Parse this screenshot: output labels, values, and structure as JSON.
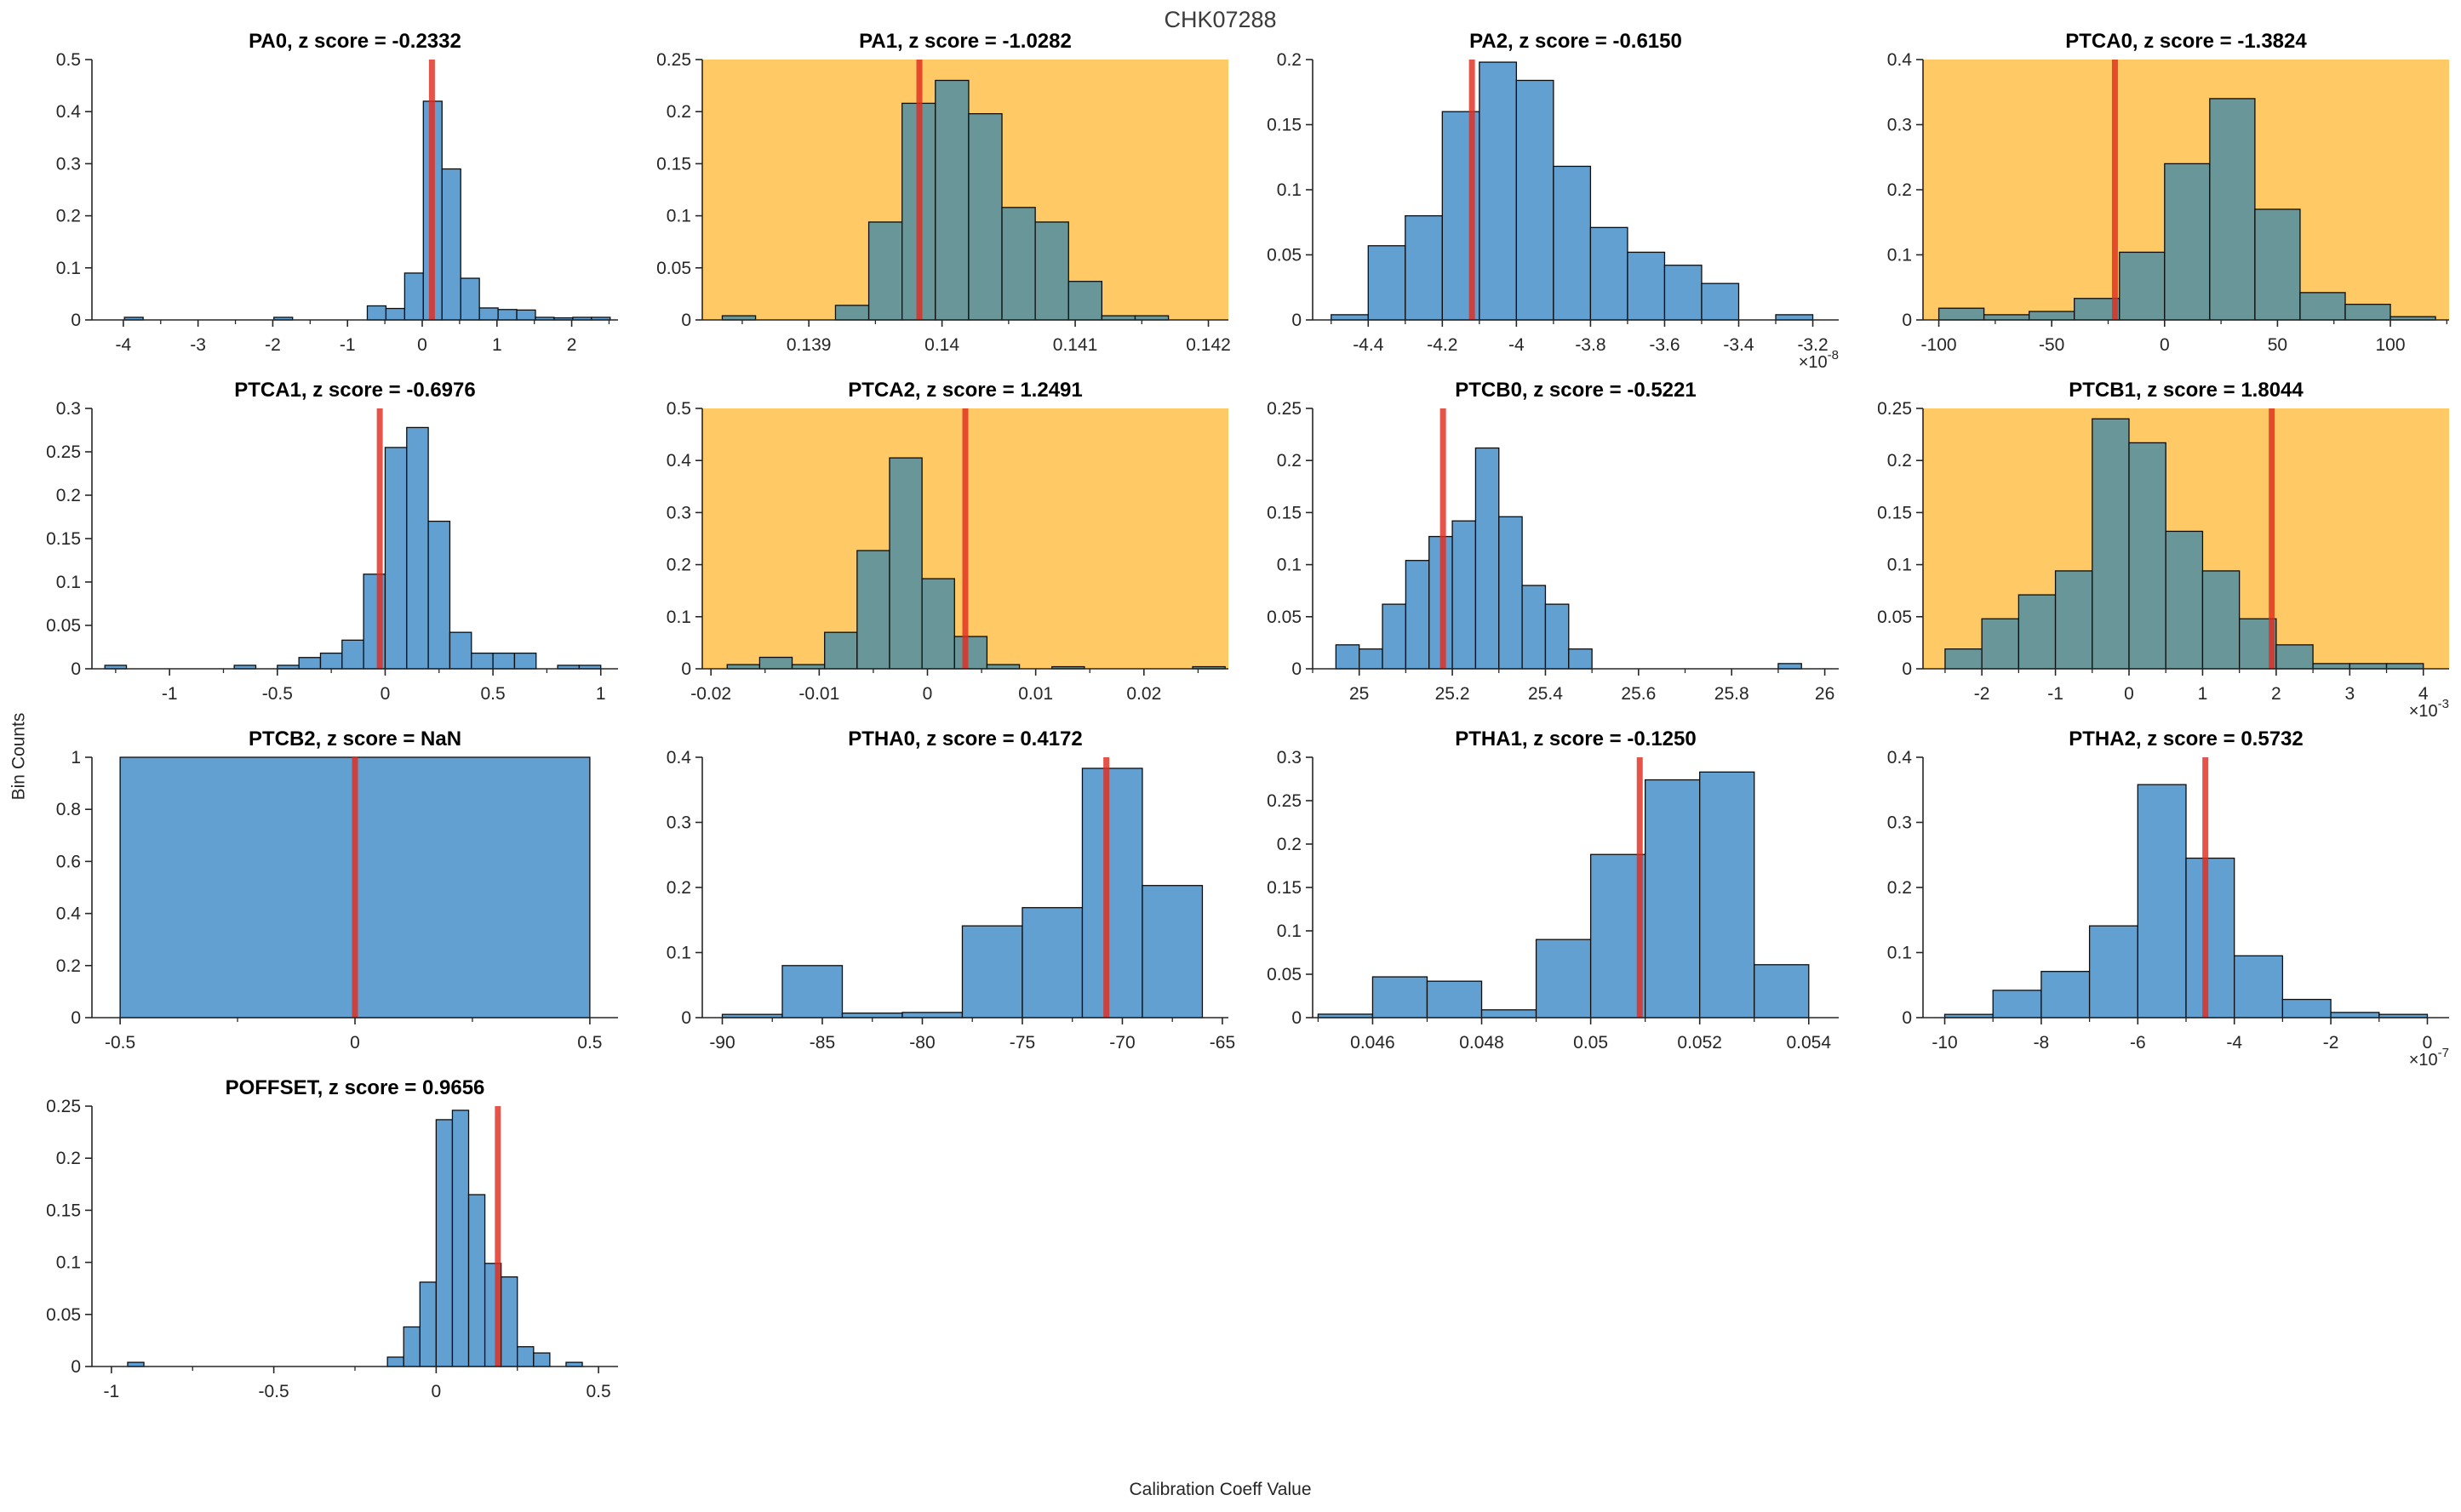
{
  "figure": {
    "title": "CHK07288",
    "xlabel": "Calibration Coeff Value",
    "ylabel": "Bin Counts"
  },
  "colors": {
    "bar_fill": "#61a0d1",
    "bar_fill_on_highlight": "#699699",
    "highlight_bg": "#ffca66",
    "red_line": "#e02d20",
    "bar_edge": "#0d0d0d",
    "axis_color": "#262626",
    "subplot_title_color": "#000000",
    "figure_title_color": "#3c3c3c"
  },
  "chart_data": [
    {
      "type": "bar",
      "name": "PA0",
      "title": "PA0, z score = -0.2332",
      "highlight": false,
      "xlim": [
        -4.42,
        2.62
      ],
      "ylim": [
        0,
        0.5
      ],
      "xtick_vals": [
        -4,
        -3,
        -2,
        -1,
        0,
        1,
        2
      ],
      "xtick_labels": [
        "-4",
        "-3",
        "-2",
        "-1",
        "0",
        "1",
        "2"
      ],
      "ytick_vals": [
        0,
        0.1,
        0.2,
        0.3,
        0.4,
        0.5
      ],
      "ytick_labels": [
        "0",
        "0.1",
        "0.2",
        "0.3",
        "0.4",
        "0.5"
      ],
      "x_exponent": "",
      "bins": [
        [
          -3.985,
          -3.735,
          0.005
        ],
        [
          -1.985,
          -1.735,
          0.005
        ],
        [
          -0.735,
          -0.485,
          0.027
        ],
        [
          -0.485,
          -0.235,
          0.022
        ],
        [
          -0.235,
          0.015,
          0.09
        ],
        [
          0.015,
          0.265,
          0.42
        ],
        [
          0.265,
          0.515,
          0.29
        ],
        [
          0.515,
          0.765,
          0.08
        ],
        [
          0.765,
          1.015,
          0.023
        ],
        [
          1.015,
          1.265,
          0.02
        ],
        [
          1.265,
          1.515,
          0.019
        ],
        [
          1.515,
          1.765,
          0.005
        ],
        [
          1.765,
          2.015,
          0.004
        ],
        [
          2.015,
          2.265,
          0.005
        ],
        [
          2.265,
          2.515,
          0.005
        ]
      ],
      "red_line_x": 0.13
    },
    {
      "type": "bar",
      "name": "PA1",
      "title": "PA1, z score = -1.0282",
      "highlight": true,
      "xlim": [
        0.1382,
        0.14215
      ],
      "ylim": [
        0,
        0.25
      ],
      "xtick_vals": [
        0.139,
        0.14,
        0.141,
        0.142
      ],
      "xtick_labels": [
        "0.139",
        "0.14",
        "0.141",
        "0.142"
      ],
      "ytick_vals": [
        0,
        0.05,
        0.1,
        0.15,
        0.2,
        0.25
      ],
      "ytick_labels": [
        "0",
        "0.05",
        "0.1",
        "0.15",
        "0.2",
        "0.25"
      ],
      "x_exponent": "",
      "bins": [
        [
          0.13835,
          0.1386,
          0.004
        ],
        [
          0.1392,
          0.13945,
          0.014
        ],
        [
          0.13945,
          0.1397,
          0.094
        ],
        [
          0.1397,
          0.13995,
          0.208
        ],
        [
          0.13995,
          0.1402,
          0.23
        ],
        [
          0.1402,
          0.14045,
          0.198
        ],
        [
          0.14045,
          0.1407,
          0.108
        ],
        [
          0.1407,
          0.14095,
          0.094
        ],
        [
          0.14095,
          0.1412,
          0.037
        ],
        [
          0.1412,
          0.14145,
          0.004
        ],
        [
          0.14145,
          0.1417,
          0.004
        ]
      ],
      "red_line_x": 0.13983
    },
    {
      "type": "bar",
      "name": "PA2",
      "title": "PA2, z score = -0.6150",
      "highlight": false,
      "xlim": [
        -4.55,
        -3.13
      ],
      "ylim": [
        0,
        0.2
      ],
      "xtick_vals": [
        -4.4,
        -4.2,
        -4,
        -3.8,
        -3.6,
        -3.4,
        -3.2
      ],
      "xtick_labels": [
        "-4.4",
        "-4.2",
        "-4",
        "-3.8",
        "-3.6",
        "-3.4",
        "-3.2"
      ],
      "ytick_vals": [
        0,
        0.05,
        0.1,
        0.15,
        0.2
      ],
      "ytick_labels": [
        "0",
        "0.05",
        "0.1",
        "0.15",
        "0.2"
      ],
      "x_exponent": "-8",
      "bins": [
        [
          -4.5,
          -4.4,
          0.004
        ],
        [
          -4.4,
          -4.3,
          0.057
        ],
        [
          -4.3,
          -4.2,
          0.08
        ],
        [
          -4.2,
          -4.1,
          0.16
        ],
        [
          -4.1,
          -4.0,
          0.198
        ],
        [
          -4.0,
          -3.9,
          0.184
        ],
        [
          -3.9,
          -3.8,
          0.118
        ],
        [
          -3.8,
          -3.7,
          0.071
        ],
        [
          -3.7,
          -3.6,
          0.052
        ],
        [
          -3.6,
          -3.5,
          0.042
        ],
        [
          -3.5,
          -3.4,
          0.028
        ],
        [
          -3.3,
          -3.2,
          0.004
        ]
      ],
      "red_line_x": -4.12
    },
    {
      "type": "bar",
      "name": "PTCA0",
      "title": "PTCA0, z score = -1.3824",
      "highlight": true,
      "xlim": [
        -107,
        126
      ],
      "ylim": [
        0,
        0.4
      ],
      "xtick_vals": [
        -100,
        -50,
        0,
        50,
        100
      ],
      "xtick_labels": [
        "-100",
        "-50",
        "0",
        "50",
        "100"
      ],
      "ytick_vals": [
        0,
        0.1,
        0.2,
        0.3,
        0.4
      ],
      "ytick_labels": [
        "0",
        "0.1",
        "0.2",
        "0.3",
        "0.4"
      ],
      "x_exponent": "",
      "bins": [
        [
          -100,
          -80,
          0.018
        ],
        [
          -80,
          -60,
          0.008
        ],
        [
          -60,
          -40,
          0.013
        ],
        [
          -40,
          -20,
          0.033
        ],
        [
          -20,
          0,
          0.104
        ],
        [
          0,
          20,
          0.24
        ],
        [
          20,
          40,
          0.34
        ],
        [
          40,
          60,
          0.17
        ],
        [
          60,
          80,
          0.042
        ],
        [
          80,
          100,
          0.024
        ],
        [
          100,
          120,
          0.005
        ]
      ],
      "red_line_x": -22
    },
    {
      "type": "bar",
      "name": "PTCA1",
      "title": "PTCA1, z score = -0.6976",
      "highlight": false,
      "xlim": [
        -1.36,
        1.08
      ],
      "ylim": [
        0,
        0.3
      ],
      "xtick_vals": [
        -1,
        -0.5,
        0,
        0.5,
        1
      ],
      "xtick_labels": [
        "-1",
        "-0.5",
        "0",
        "0.5",
        "1"
      ],
      "ytick_vals": [
        0,
        0.05,
        0.1,
        0.15,
        0.2,
        0.25,
        0.3
      ],
      "ytick_labels": [
        "0",
        "0.05",
        "0.1",
        "0.15",
        "0.2",
        "0.25",
        "0.3"
      ],
      "x_exponent": "",
      "bins": [
        [
          -1.3,
          -1.2,
          0.004
        ],
        [
          -0.7,
          -0.6,
          0.004
        ],
        [
          -0.5,
          -0.4,
          0.004
        ],
        [
          -0.4,
          -0.3,
          0.013
        ],
        [
          -0.3,
          -0.2,
          0.018
        ],
        [
          -0.2,
          -0.1,
          0.033
        ],
        [
          -0.1,
          0,
          0.109
        ],
        [
          0,
          0.1,
          0.255
        ],
        [
          0.1,
          0.2,
          0.278
        ],
        [
          0.2,
          0.3,
          0.17
        ],
        [
          0.3,
          0.4,
          0.042
        ],
        [
          0.4,
          0.5,
          0.018
        ],
        [
          0.5,
          0.6,
          0.018
        ],
        [
          0.6,
          0.7,
          0.018
        ],
        [
          0.8,
          0.9,
          0.004
        ],
        [
          0.9,
          1.0,
          0.004
        ]
      ],
      "red_line_x": -0.025
    },
    {
      "type": "bar",
      "name": "PTCA2",
      "title": "PTCA2, z score = 1.2491",
      "highlight": true,
      "xlim": [
        -0.0208,
        0.0278
      ],
      "ylim": [
        0,
        0.5
      ],
      "xtick_vals": [
        -0.02,
        -0.01,
        0,
        0.01,
        0.02
      ],
      "xtick_labels": [
        "-0.02",
        "-0.01",
        "0",
        "0.01",
        "0.02"
      ],
      "ytick_vals": [
        0,
        0.1,
        0.2,
        0.3,
        0.4,
        0.5
      ],
      "ytick_labels": [
        "0",
        "0.1",
        "0.2",
        "0.3",
        "0.4",
        "0.5"
      ],
      "x_exponent": "",
      "bins": [
        [
          -0.0185,
          -0.0155,
          0.008
        ],
        [
          -0.0155,
          -0.0125,
          0.022
        ],
        [
          -0.0125,
          -0.0095,
          0.008
        ],
        [
          -0.0095,
          -0.0065,
          0.07
        ],
        [
          -0.0065,
          -0.0035,
          0.227
        ],
        [
          -0.0035,
          -0.0005,
          0.405
        ],
        [
          -0.0005,
          0.0025,
          0.173
        ],
        [
          0.0025,
          0.0055,
          0.062
        ],
        [
          0.0055,
          0.0085,
          0.008
        ],
        [
          0.0115,
          0.0145,
          0.004
        ],
        [
          0.0245,
          0.0275,
          0.004
        ]
      ],
      "red_line_x": 0.0035
    },
    {
      "type": "bar",
      "name": "PTCB0",
      "title": "PTCB0, z score = -0.5221",
      "highlight": false,
      "xlim": [
        24.9,
        26.03
      ],
      "ylim": [
        0,
        0.25
      ],
      "xtick_vals": [
        25,
        25.2,
        25.4,
        25.6,
        25.8,
        26
      ],
      "xtick_labels": [
        "25",
        "25.2",
        "25.4",
        "25.6",
        "25.8",
        "26"
      ],
      "ytick_vals": [
        0,
        0.05,
        0.1,
        0.15,
        0.2,
        0.25
      ],
      "ytick_labels": [
        "0",
        "0.05",
        "0.1",
        "0.15",
        "0.2",
        "0.25"
      ],
      "x_exponent": "",
      "bins": [
        [
          24.95,
          25.0,
          0.023
        ],
        [
          25.0,
          25.05,
          0.019
        ],
        [
          25.05,
          25.1,
          0.062
        ],
        [
          25.1,
          25.15,
          0.104
        ],
        [
          25.15,
          25.2,
          0.127
        ],
        [
          25.2,
          25.25,
          0.142
        ],
        [
          25.25,
          25.3,
          0.212
        ],
        [
          25.3,
          25.35,
          0.146
        ],
        [
          25.35,
          25.4,
          0.08
        ],
        [
          25.4,
          25.45,
          0.062
        ],
        [
          25.45,
          25.5,
          0.019
        ],
        [
          25.9,
          25.95,
          0.005
        ]
      ],
      "red_line_x": 25.18
    },
    {
      "type": "bar",
      "name": "PTCB1",
      "title": "PTCB1, z score = 1.8044",
      "highlight": true,
      "xlim": [
        -2.8,
        4.35
      ],
      "ylim": [
        0,
        0.25
      ],
      "xtick_vals": [
        -2,
        -1,
        0,
        1,
        2,
        3,
        4
      ],
      "xtick_labels": [
        "-2",
        "-1",
        "0",
        "1",
        "2",
        "3",
        "4"
      ],
      "ytick_vals": [
        0,
        0.05,
        0.1,
        0.15,
        0.2,
        0.25
      ],
      "ytick_labels": [
        "0",
        "0.05",
        "0.1",
        "0.15",
        "0.2",
        "0.25"
      ],
      "x_exponent": "-3",
      "bins": [
        [
          -2.5,
          -2,
          0.019
        ],
        [
          -2,
          -1.5,
          0.048
        ],
        [
          -1.5,
          -1,
          0.071
        ],
        [
          -1,
          -0.5,
          0.094
        ],
        [
          -0.5,
          0,
          0.24
        ],
        [
          0,
          0.5,
          0.217
        ],
        [
          0.5,
          1,
          0.132
        ],
        [
          1,
          1.5,
          0.094
        ],
        [
          1.5,
          2,
          0.048
        ],
        [
          2,
          2.5,
          0.023
        ],
        [
          2.5,
          3,
          0.005
        ],
        [
          3,
          3.5,
          0.005
        ],
        [
          3.5,
          4,
          0.005
        ]
      ],
      "red_line_x": 1.94
    },
    {
      "type": "bar",
      "name": "PTCB2",
      "title": "PTCB2, z score = NaN",
      "highlight": false,
      "xlim": [
        -0.56,
        0.56
      ],
      "ylim": [
        0,
        1
      ],
      "xtick_vals": [
        -0.5,
        0,
        0.5
      ],
      "xtick_labels": [
        "-0.5",
        "0",
        "0.5"
      ],
      "ytick_vals": [
        0,
        0.2,
        0.4,
        0.6,
        0.8,
        1
      ],
      "ytick_labels": [
        "0",
        "0.2",
        "0.4",
        "0.6",
        "0.8",
        "1"
      ],
      "x_exponent": "",
      "bins": [
        [
          -0.5,
          0.5,
          1.0
        ]
      ],
      "red_line_x": 0
    },
    {
      "type": "bar",
      "name": "PTHA0",
      "title": "PTHA0, z score = 0.4172",
      "highlight": false,
      "xlim": [
        -91,
        -64.7
      ],
      "ylim": [
        0,
        0.4
      ],
      "xtick_vals": [
        -90,
        -85,
        -80,
        -75,
        -70,
        -65
      ],
      "xtick_labels": [
        "-90",
        "-85",
        "-80",
        "-75",
        "-70",
        "-65"
      ],
      "ytick_vals": [
        0,
        0.1,
        0.2,
        0.3,
        0.4
      ],
      "ytick_labels": [
        "0",
        "0.1",
        "0.2",
        "0.3",
        "0.4"
      ],
      "x_exponent": "",
      "bins": [
        [
          -90,
          -87,
          0.005
        ],
        [
          -87,
          -84,
          0.08
        ],
        [
          -84,
          -81,
          0.007
        ],
        [
          -81,
          -78,
          0.008
        ],
        [
          -78,
          -75,
          0.141
        ],
        [
          -75,
          -72,
          0.169
        ],
        [
          -72,
          -69,
          0.383
        ],
        [
          -69,
          -66,
          0.203
        ]
      ],
      "red_line_x": -70.8
    },
    {
      "type": "bar",
      "name": "PTHA1",
      "title": "PTHA1, z score = -0.1250",
      "highlight": false,
      "xlim": [
        0.0449,
        0.05455
      ],
      "ylim": [
        0,
        0.3
      ],
      "xtick_vals": [
        0.046,
        0.048,
        0.05,
        0.052,
        0.054
      ],
      "xtick_labels": [
        "0.046",
        "0.048",
        "0.05",
        "0.052",
        "0.054"
      ],
      "ytick_vals": [
        0,
        0.05,
        0.1,
        0.15,
        0.2,
        0.25,
        0.3
      ],
      "ytick_labels": [
        "0",
        "0.05",
        "0.1",
        "0.15",
        "0.2",
        "0.25",
        "0.3"
      ],
      "x_exponent": "",
      "bins": [
        [
          0.045,
          0.046,
          0.004
        ],
        [
          0.046,
          0.047,
          0.047
        ],
        [
          0.047,
          0.048,
          0.042
        ],
        [
          0.048,
          0.049,
          0.009
        ],
        [
          0.049,
          0.05,
          0.09
        ],
        [
          0.05,
          0.051,
          0.188
        ],
        [
          0.051,
          0.052,
          0.274
        ],
        [
          0.052,
          0.053,
          0.283
        ],
        [
          0.053,
          0.054,
          0.061
        ]
      ],
      "red_line_x": 0.0509
    },
    {
      "type": "bar",
      "name": "PTHA2",
      "title": "PTHA2, z score = 0.5732",
      "highlight": false,
      "xlim": [
        -10.45,
        0.45
      ],
      "ylim": [
        0,
        0.4
      ],
      "xtick_vals": [
        -10,
        -8,
        -6,
        -4,
        -2,
        0
      ],
      "xtick_labels": [
        "-10",
        "-8",
        "-6",
        "-4",
        "-2",
        "0"
      ],
      "ytick_vals": [
        0,
        0.1,
        0.2,
        0.3,
        0.4
      ],
      "ytick_labels": [
        "0",
        "0.1",
        "0.2",
        "0.3",
        "0.4"
      ],
      "x_exponent": "-7",
      "bins": [
        [
          -10,
          -9,
          0.005
        ],
        [
          -9,
          -8,
          0.042
        ],
        [
          -8,
          -7,
          0.071
        ],
        [
          -7,
          -6,
          0.141
        ],
        [
          -6,
          -5,
          0.358
        ],
        [
          -5,
          -4,
          0.245
        ],
        [
          -4,
          -3,
          0.095
        ],
        [
          -3,
          -2,
          0.028
        ],
        [
          -2,
          -1,
          0.008
        ],
        [
          -1,
          0,
          0.005
        ]
      ],
      "red_line_x": -4.6
    },
    {
      "type": "bar",
      "name": "POFFSET",
      "title": "POFFSET, z score = 0.9656",
      "highlight": false,
      "xlim": [
        -1.06,
        0.56
      ],
      "ylim": [
        0,
        0.25
      ],
      "xtick_vals": [
        -1,
        -0.5,
        0,
        0.5
      ],
      "xtick_labels": [
        "-1",
        "-0.5",
        "0",
        "0.5"
      ],
      "ytick_vals": [
        0,
        0.05,
        0.1,
        0.15,
        0.2,
        0.25
      ],
      "ytick_labels": [
        "0",
        "0.05",
        "0.1",
        "0.15",
        "0.2",
        "0.25"
      ],
      "x_exponent": "",
      "bins": [
        [
          -0.95,
          -0.9,
          0.004
        ],
        [
          -0.15,
          -0.1,
          0.009
        ],
        [
          -0.1,
          -0.05,
          0.038
        ],
        [
          -0.05,
          0,
          0.081
        ],
        [
          0,
          0.05,
          0.237
        ],
        [
          0.05,
          0.1,
          0.246
        ],
        [
          0.1,
          0.15,
          0.165
        ],
        [
          0.15,
          0.2,
          0.099
        ],
        [
          0.2,
          0.25,
          0.086
        ],
        [
          0.25,
          0.3,
          0.019
        ],
        [
          0.3,
          0.35,
          0.013
        ],
        [
          0.4,
          0.45,
          0.004
        ]
      ],
      "red_line_x": 0.19
    }
  ]
}
